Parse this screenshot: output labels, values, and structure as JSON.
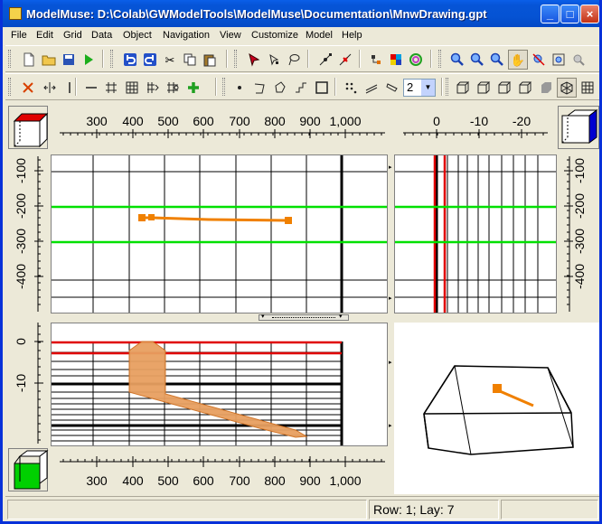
{
  "window": {
    "title": "ModelMuse: D:\\Colab\\GWModelTools\\ModelMuse\\Documentation\\MnwDrawing.gpt"
  },
  "menu": [
    "File",
    "Edit",
    "Grid",
    "Data",
    "Object",
    "Navigation",
    "View",
    "Customize",
    "Model",
    "Help"
  ],
  "toolbar1": {
    "groups": [
      [
        "new-file-icon",
        "open-folder-icon",
        "save-icon",
        "run-icon"
      ],
      [
        "undo-icon",
        "redo-icon",
        "cut-icon",
        "copy-icon",
        "paste-icon"
      ],
      [
        "select-arrow-icon",
        "select-vertex-icon",
        "lasso-icon"
      ],
      [
        "add-vertex-icon",
        "delete-vertex-icon"
      ],
      [
        "edit-properties-icon",
        "color-grid-icon",
        "contour-icon"
      ],
      [
        "zoom-in-icon",
        "zoom-icon",
        "zoom-out-icon",
        "pan-hand-icon",
        "restore-default-view-icon",
        "goto-icon",
        "previous-view-icon"
      ]
    ]
  },
  "toolbar2": {
    "groups": [
      [
        "delete-column-icon",
        "move-column-icon",
        "single-line-icon"
      ],
      [
        "grid-line-icon",
        "grid-icon",
        "generate-grid-icon",
        "smooth-grid-icon",
        "grid-angle-icon",
        "add-point-icon"
      ],
      [
        "point-object-icon",
        "polyline-object-icon",
        "polygon-object-icon",
        "step-object-icon",
        "rectangle-object-icon"
      ],
      [
        "dots-icon",
        "lines-icon",
        "slanted-lines-icon"
      ],
      [
        "cube-front-icon",
        "cube-top-icon",
        "cube-side-icon",
        "cube-3d-icon",
        "solid-shape-icon",
        "cube-grid-icon",
        "table-grid-icon"
      ]
    ],
    "layer_value": "2"
  },
  "top_view": {
    "x_ticks": [
      "300",
      "400",
      "500",
      "600",
      "700",
      "800",
      "900",
      "1,000"
    ],
    "y_ticks": [
      "-100",
      "-200",
      "-300",
      "-400"
    ]
  },
  "side_view": {
    "x_ticks": [
      "0",
      "-10",
      "-20"
    ],
    "y_ticks": [
      "-100",
      "-200",
      "-300",
      "-400"
    ]
  },
  "front_view": {
    "y_ticks": [
      "0",
      "-10"
    ],
    "x_ticks": [
      "300",
      "400",
      "500",
      "600",
      "700",
      "800",
      "900",
      "1,000"
    ]
  },
  "status": {
    "row_layer": "Row: 1; Lay: 7"
  },
  "colors": {
    "selected_layer_line": "#00e000",
    "selected_column_line": "#e00000",
    "well": "#f08000",
    "well_screen": "#e8a060"
  }
}
